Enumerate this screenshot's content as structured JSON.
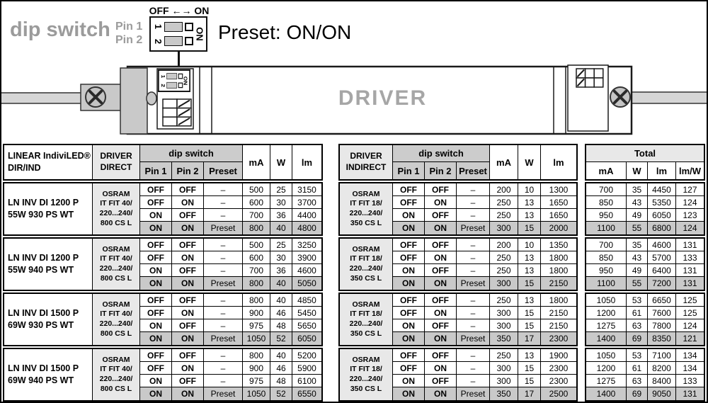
{
  "legend": {
    "title": "dip switch",
    "pin1": "Pin 1",
    "pin2": "Pin 2",
    "range": "OFF ←→ ON",
    "num1": "1",
    "num2": "2",
    "on": "ON",
    "preset": "Preset: ON/ON"
  },
  "diagram": {
    "driver_label": "DRIVER",
    "dip": {
      "num1": "1",
      "num2": "2",
      "on": "ON"
    }
  },
  "colors": {
    "gray_text": "#9b9b9b",
    "driver_text": "#a6a6a6",
    "highlight_row": "#c9c9c9",
    "header_light": "#e8e8e8",
    "header_mid": "#cccccc"
  },
  "table": {
    "headers": {
      "product": [
        "LINEAR IndiviLED®",
        "DIR/IND"
      ],
      "driver_direct": [
        "DRIVER",
        "DIRECT"
      ],
      "driver_indirect": [
        "DRIVER",
        "INDIRECT"
      ],
      "dip_switch": "dip switch",
      "pin1": "Pin 1",
      "pin2": "Pin 2",
      "preset": "Preset",
      "ma": "mA",
      "w": "W",
      "lm": "lm",
      "lm_per_w": "lm/W",
      "total": "Total"
    },
    "blocks": [
      {
        "product": [
          "LN INV DI 1200 P",
          "55W 930 PS WT"
        ],
        "driver_direct": [
          "OSRAM",
          "IT FIT 40/",
          "220...240/",
          "800 CS L"
        ],
        "driver_indirect": [
          "OSRAM",
          "IT FIT 18/",
          "220...240/",
          "350 CS L"
        ],
        "rows": [
          {
            "pin1": "OFF",
            "pin2": "OFF",
            "preset": "–",
            "direct": {
              "ma": "500",
              "w": "25",
              "lm": "3150"
            },
            "indirect": {
              "ma": "200",
              "w": "10",
              "lm": "1300"
            },
            "total": {
              "ma": "700",
              "w": "35",
              "lm": "4450",
              "lm_per_w": "127"
            }
          },
          {
            "pin1": "OFF",
            "pin2": "ON",
            "preset": "–",
            "direct": {
              "ma": "600",
              "w": "30",
              "lm": "3700"
            },
            "indirect": {
              "ma": "250",
              "w": "13",
              "lm": "1650"
            },
            "total": {
              "ma": "850",
              "w": "43",
              "lm": "5350",
              "lm_per_w": "124"
            }
          },
          {
            "pin1": "ON",
            "pin2": "OFF",
            "preset": "–",
            "direct": {
              "ma": "700",
              "w": "36",
              "lm": "4400"
            },
            "indirect": {
              "ma": "250",
              "w": "13",
              "lm": "1650"
            },
            "total": {
              "ma": "950",
              "w": "49",
              "lm": "6050",
              "lm_per_w": "123"
            }
          },
          {
            "pin1": "ON",
            "pin2": "ON",
            "preset": "Preset",
            "direct": {
              "ma": "800",
              "w": "40",
              "lm": "4800"
            },
            "indirect": {
              "ma": "300",
              "w": "15",
              "lm": "2000"
            },
            "total": {
              "ma": "1100",
              "w": "55",
              "lm": "6800",
              "lm_per_w": "124"
            }
          }
        ]
      },
      {
        "product": [
          "LN INV DI 1200 P",
          "55W 940 PS WT"
        ],
        "driver_direct": [
          "OSRAM",
          "IT FIT 40/",
          "220...240/",
          "800 CS L"
        ],
        "driver_indirect": [
          "OSRAM",
          "IT FIT 18/",
          "220...240/",
          "350 CS L"
        ],
        "rows": [
          {
            "pin1": "OFF",
            "pin2": "OFF",
            "preset": "–",
            "direct": {
              "ma": "500",
              "w": "25",
              "lm": "3250"
            },
            "indirect": {
              "ma": "200",
              "w": "10",
              "lm": "1350"
            },
            "total": {
              "ma": "700",
              "w": "35",
              "lm": "4600",
              "lm_per_w": "131"
            }
          },
          {
            "pin1": "OFF",
            "pin2": "ON",
            "preset": "–",
            "direct": {
              "ma": "600",
              "w": "30",
              "lm": "3900"
            },
            "indirect": {
              "ma": "250",
              "w": "13",
              "lm": "1800"
            },
            "total": {
              "ma": "850",
              "w": "43",
              "lm": "5700",
              "lm_per_w": "133"
            }
          },
          {
            "pin1": "ON",
            "pin2": "OFF",
            "preset": "–",
            "direct": {
              "ma": "700",
              "w": "36",
              "lm": "4600"
            },
            "indirect": {
              "ma": "250",
              "w": "13",
              "lm": "1800"
            },
            "total": {
              "ma": "950",
              "w": "49",
              "lm": "6400",
              "lm_per_w": "131"
            }
          },
          {
            "pin1": "ON",
            "pin2": "ON",
            "preset": "Preset",
            "direct": {
              "ma": "800",
              "w": "40",
              "lm": "5050"
            },
            "indirect": {
              "ma": "300",
              "w": "15",
              "lm": "2150"
            },
            "total": {
              "ma": "1100",
              "w": "55",
              "lm": "7200",
              "lm_per_w": "131"
            }
          }
        ]
      },
      {
        "product": [
          "LN INV DI 1500 P",
          "69W 930 PS WT"
        ],
        "driver_direct": [
          "OSRAM",
          "IT FIT 40/",
          "220...240/",
          "800 CS L"
        ],
        "driver_indirect": [
          "OSRAM",
          "IT FIT 18/",
          "220...240/",
          "350 CS L"
        ],
        "rows": [
          {
            "pin1": "OFF",
            "pin2": "OFF",
            "preset": "–",
            "direct": {
              "ma": "800",
              "w": "40",
              "lm": "4850"
            },
            "indirect": {
              "ma": "250",
              "w": "13",
              "lm": "1800"
            },
            "total": {
              "ma": "1050",
              "w": "53",
              "lm": "6650",
              "lm_per_w": "125"
            }
          },
          {
            "pin1": "OFF",
            "pin2": "ON",
            "preset": "–",
            "direct": {
              "ma": "900",
              "w": "46",
              "lm": "5450"
            },
            "indirect": {
              "ma": "300",
              "w": "15",
              "lm": "2150"
            },
            "total": {
              "ma": "1200",
              "w": "61",
              "lm": "7600",
              "lm_per_w": "125"
            }
          },
          {
            "pin1": "ON",
            "pin2": "OFF",
            "preset": "–",
            "direct": {
              "ma": "975",
              "w": "48",
              "lm": "5650"
            },
            "indirect": {
              "ma": "300",
              "w": "15",
              "lm": "2150"
            },
            "total": {
              "ma": "1275",
              "w": "63",
              "lm": "7800",
              "lm_per_w": "124"
            }
          },
          {
            "pin1": "ON",
            "pin2": "ON",
            "preset": "Preset",
            "direct": {
              "ma": "1050",
              "w": "52",
              "lm": "6050"
            },
            "indirect": {
              "ma": "350",
              "w": "17",
              "lm": "2300"
            },
            "total": {
              "ma": "1400",
              "w": "69",
              "lm": "8350",
              "lm_per_w": "121"
            }
          }
        ]
      },
      {
        "product": [
          "LN INV DI 1500 P",
          "69W 940 PS WT"
        ],
        "driver_direct": [
          "OSRAM",
          "IT FIT 40/",
          "220...240/",
          "800 CS L"
        ],
        "driver_indirect": [
          "OSRAM",
          "IT FIT 18/",
          "220...240/",
          "350 CS L"
        ],
        "rows": [
          {
            "pin1": "OFF",
            "pin2": "OFF",
            "preset": "–",
            "direct": {
              "ma": "800",
              "w": "40",
              "lm": "5200"
            },
            "indirect": {
              "ma": "250",
              "w": "13",
              "lm": "1900"
            },
            "total": {
              "ma": "1050",
              "w": "53",
              "lm": "7100",
              "lm_per_w": "134"
            }
          },
          {
            "pin1": "OFF",
            "pin2": "ON",
            "preset": "–",
            "direct": {
              "ma": "900",
              "w": "46",
              "lm": "5900"
            },
            "indirect": {
              "ma": "300",
              "w": "15",
              "lm": "2300"
            },
            "total": {
              "ma": "1200",
              "w": "61",
              "lm": "8200",
              "lm_per_w": "134"
            }
          },
          {
            "pin1": "ON",
            "pin2": "OFF",
            "preset": "–",
            "direct": {
              "ma": "975",
              "w": "48",
              "lm": "6100"
            },
            "indirect": {
              "ma": "300",
              "w": "15",
              "lm": "2300"
            },
            "total": {
              "ma": "1275",
              "w": "63",
              "lm": "8400",
              "lm_per_w": "133"
            }
          },
          {
            "pin1": "ON",
            "pin2": "ON",
            "preset": "Preset",
            "direct": {
              "ma": "1050",
              "w": "52",
              "lm": "6550"
            },
            "indirect": {
              "ma": "350",
              "w": "17",
              "lm": "2500"
            },
            "total": {
              "ma": "1400",
              "w": "69",
              "lm": "9050",
              "lm_per_w": "131"
            }
          }
        ]
      }
    ]
  }
}
